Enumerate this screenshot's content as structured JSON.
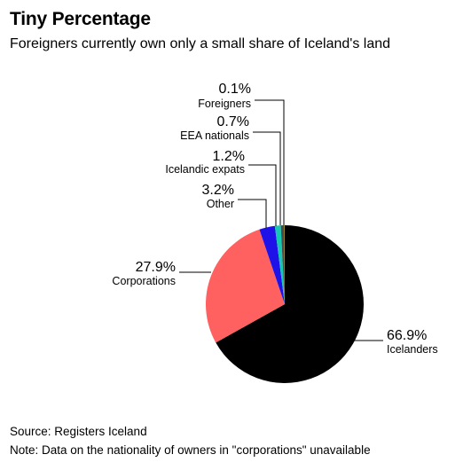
{
  "title": "Tiny Percentage",
  "subtitle": "Foreigners currently own only a small share of Iceland's land",
  "source": "Source: Registers Iceland",
  "note": "Note: Data on the nationality of owners in \"corporations\" unavailable",
  "chart_data": {
    "type": "pie",
    "title": "Tiny Percentage",
    "subtitle": "Foreigners currently own only a small share of Iceland's land",
    "slices": [
      {
        "label": "Icelanders",
        "value": 66.9,
        "display": "66.9%",
        "color": "#000000"
      },
      {
        "label": "Corporations",
        "value": 27.9,
        "display": "27.9%",
        "color": "#ff6060"
      },
      {
        "label": "Other",
        "value": 3.2,
        "display": "3.2%",
        "color": "#1f12e8"
      },
      {
        "label": "Icelandic expats",
        "value": 1.2,
        "display": "1.2%",
        "color": "#14c8b4"
      },
      {
        "label": "EEA nationals",
        "value": 0.7,
        "display": "0.7%",
        "color": "#4a4a4a"
      },
      {
        "label": "Foreigners",
        "value": 0.1,
        "display": "0.1%",
        "color": "#d9b400"
      }
    ],
    "legend": "none"
  }
}
